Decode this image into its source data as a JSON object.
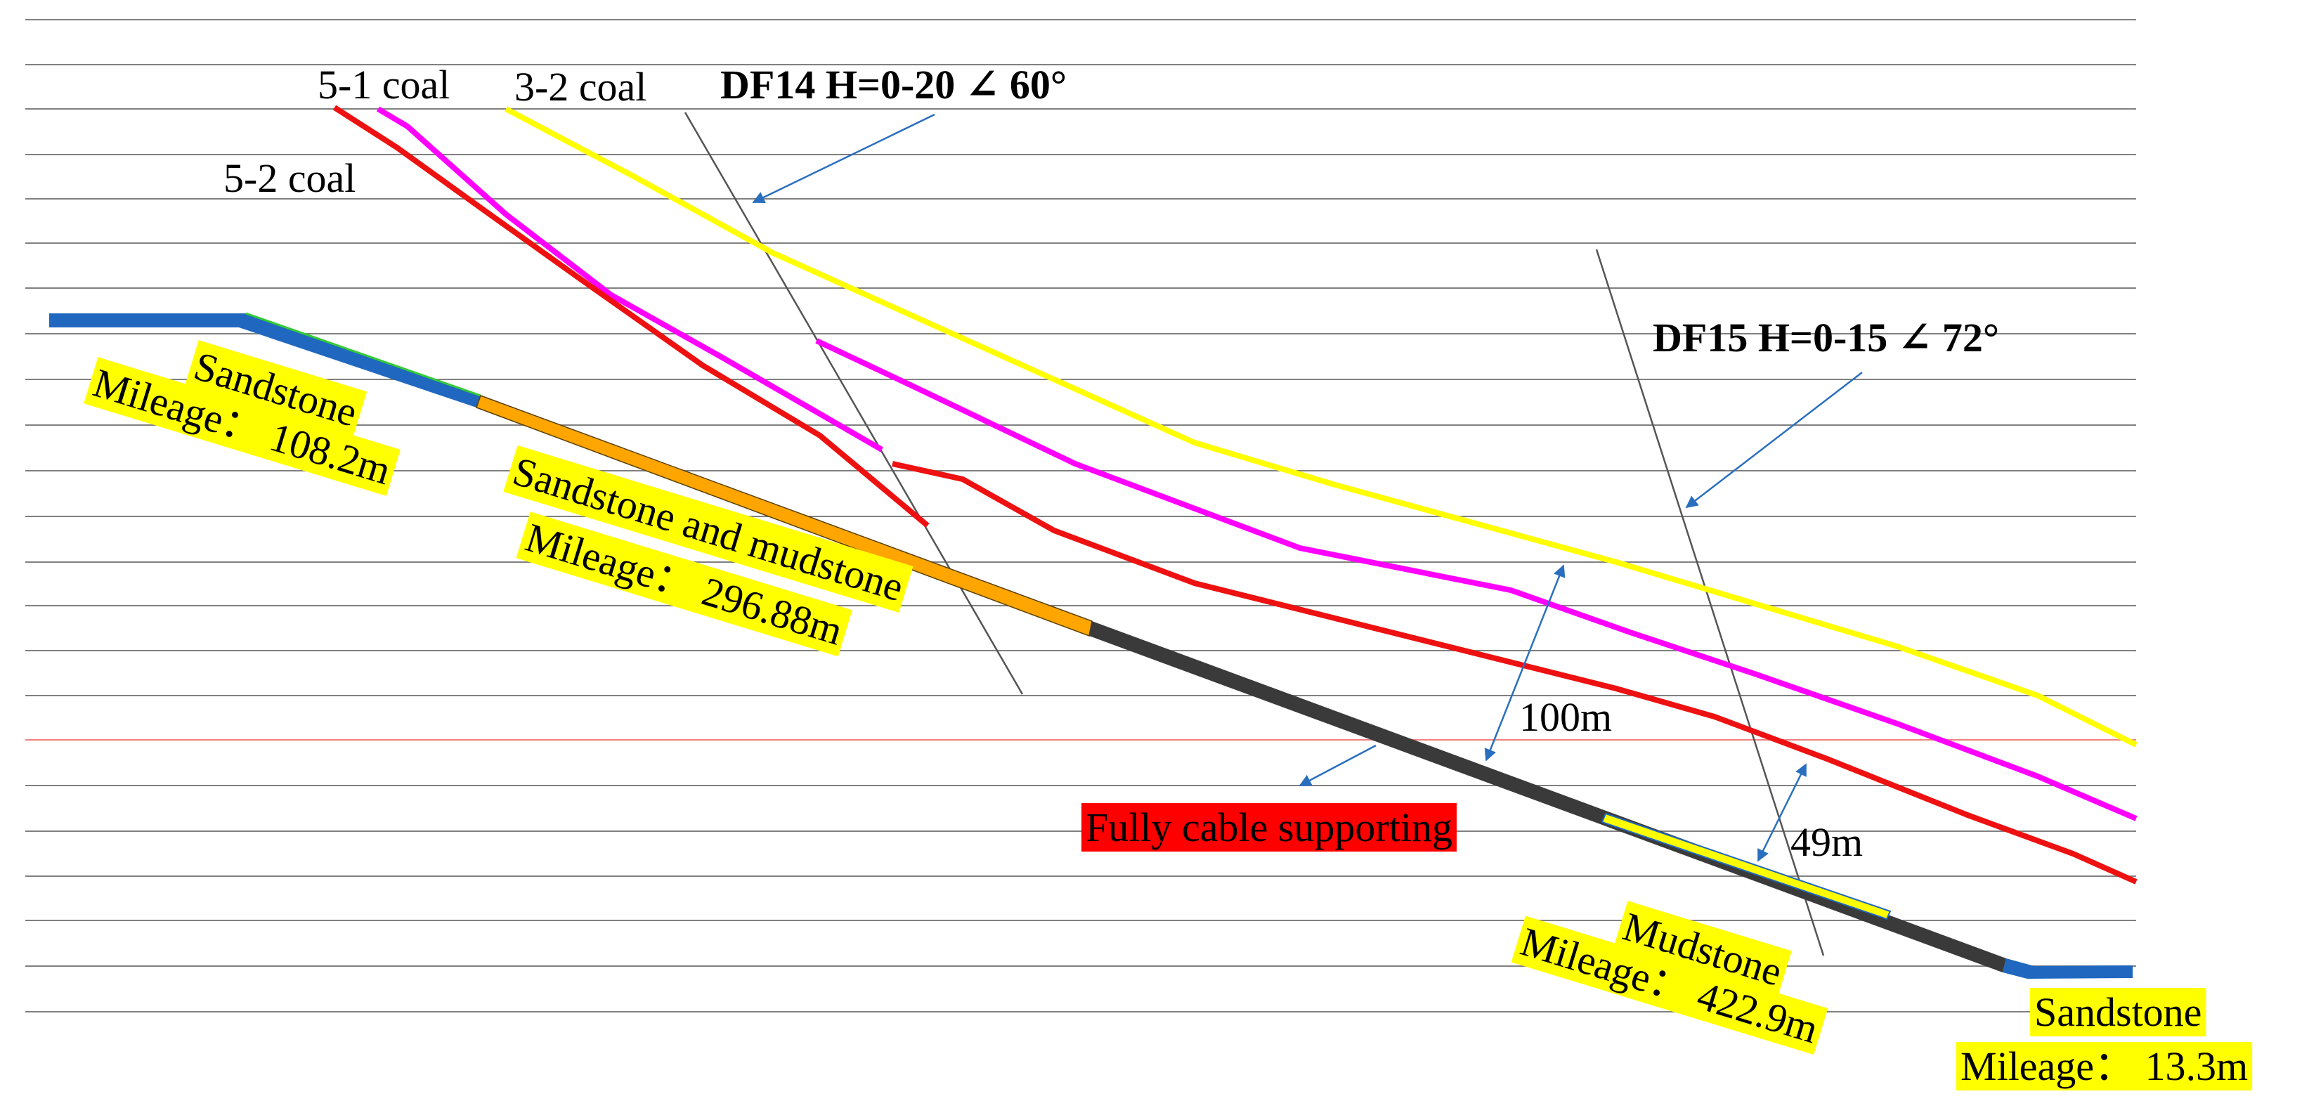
{
  "coal_seams": {
    "seam_5_1": "5-1 coal",
    "seam_3_2": "3-2 coal",
    "seam_5_2": "5-2 coal"
  },
  "faults": {
    "df14": "DF14 H=0-20 ∠ 60°",
    "df15": "DF15 H=0-15 ∠ 72°"
  },
  "distances": {
    "d1": "100m",
    "d2": "49m"
  },
  "segments": {
    "seg1_rock": "Sandstone",
    "seg1_mileage": "Mileage： 108.2m",
    "seg2_rock": "Sandstone and mudstone",
    "seg2_mileage": "Mileage： 296.88m",
    "seg3_rock": "Mudstone",
    "seg3_mileage": "Mileage： 422.9m",
    "seg4_rock": "Sandstone",
    "seg4_mileage": "Mileage： 13.3m"
  },
  "support_label": "Fully cable supporting",
  "colors": {
    "seam_5_1": "#ff00ff",
    "seam_5_2": "#ee1111",
    "seam_3_2": "#ffff00",
    "sandstone": "#2067c0",
    "sandstone_mudstone": "#ffa500",
    "mudstone": "#3a3a3a",
    "label_bg": "#ffff00",
    "support_bg": "#ff0000",
    "arrow": "#2a6fbf"
  }
}
